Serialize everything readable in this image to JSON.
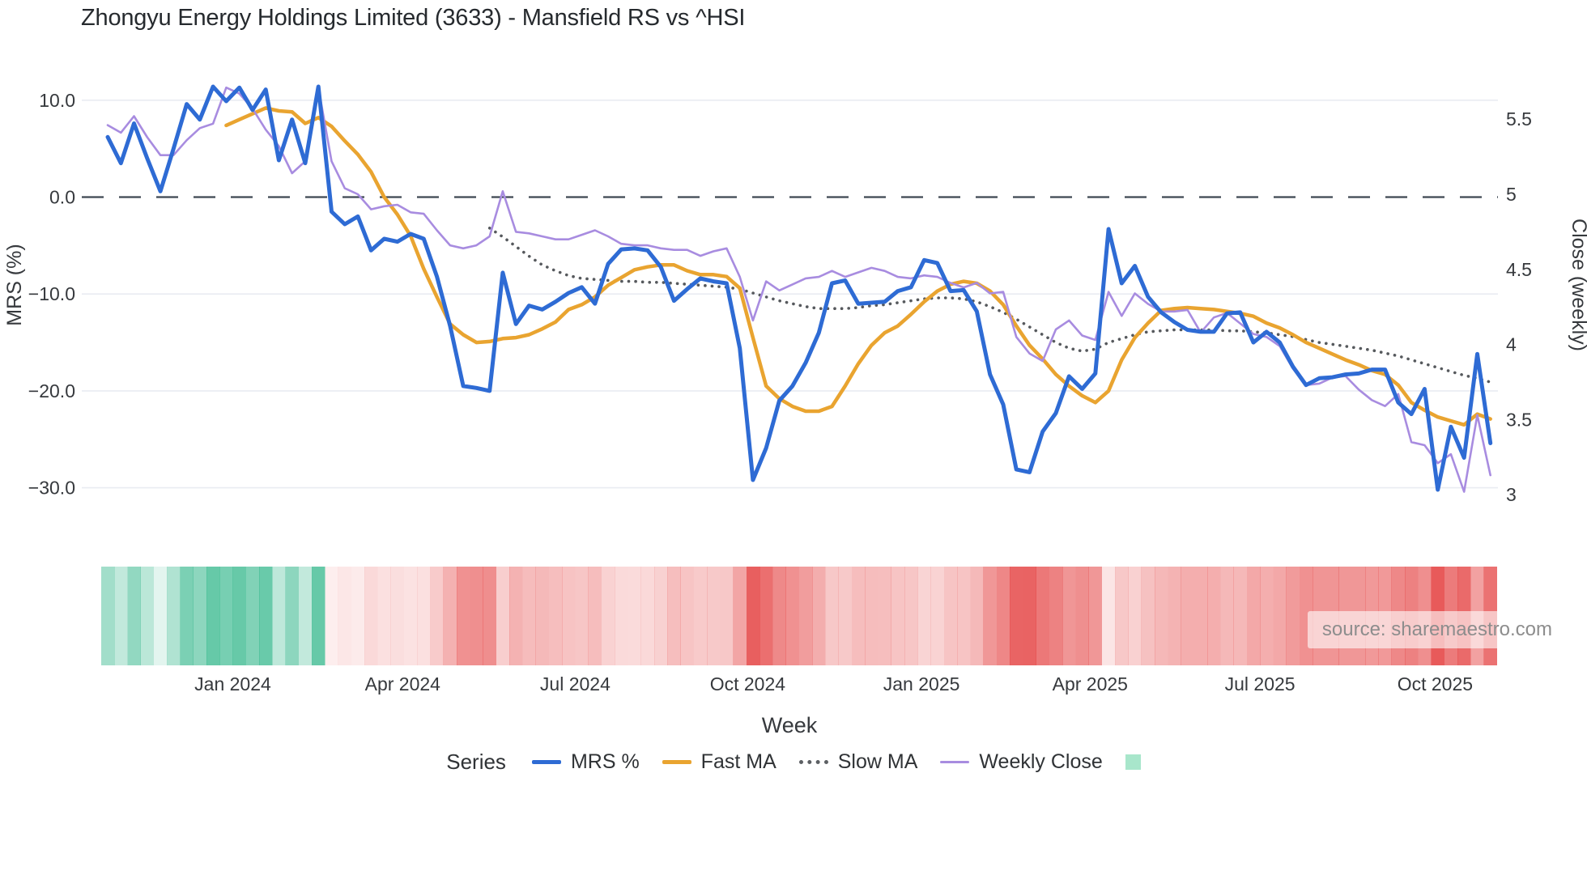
{
  "title": "Zhongyu Energy Holdings Limited (3633) - Mansfield RS vs ^HSI",
  "watermark": {
    "text": "source: sharemaestro.com"
  },
  "legend": {
    "title": "Series",
    "items": [
      {
        "label": "MRS %",
        "marker": "solid",
        "color": "#2e6bd4"
      },
      {
        "label": "Fast MA",
        "marker": "solid",
        "color": "#e9a430"
      },
      {
        "label": "Slow MA",
        "marker": "dotted",
        "color": "#5d6064"
      },
      {
        "label": "Weekly Close",
        "marker": "thin",
        "color": "#a88ce0"
      },
      {
        "label": "",
        "marker": "square",
        "color": "#a8e6cb"
      }
    ]
  },
  "chart_data": {
    "type": "line",
    "title": "Zhongyu Energy Holdings Limited (3633) - Mansfield RS vs ^HSI",
    "x_axis": {
      "label": "Week",
      "unit": "weekly points, index 0 = first week shown (late Oct 2023)",
      "ticks": [
        {
          "label": "Jan 2024",
          "week": 9.5
        },
        {
          "label": "Apr 2024",
          "week": 22.4
        },
        {
          "label": "Jul 2024",
          "week": 35.5
        },
        {
          "label": "Oct 2024",
          "week": 48.6
        },
        {
          "label": "Jan 2025",
          "week": 61.8
        },
        {
          "label": "Apr 2025",
          "week": 74.6
        },
        {
          "label": "Jul 2025",
          "week": 87.5
        },
        {
          "label": "Oct 2025",
          "week": 100.8
        }
      ]
    },
    "y_left": {
      "label": "MRS (%)",
      "range": [
        -33,
        13.5
      ],
      "zero_line": 0,
      "ticks": [
        {
          "v": 10,
          "label": "10.0"
        },
        {
          "v": 0,
          "label": "0.0"
        },
        {
          "v": -10,
          "label": "−10.0"
        },
        {
          "v": -20,
          "label": "−20.0"
        },
        {
          "v": -30,
          "label": "−30.0"
        }
      ]
    },
    "y_right": {
      "label": "Close (weekly)",
      "range": [
        2.95,
        5.75
      ],
      "ticks": [
        {
          "v": 5.5,
          "label": "5.5"
        },
        {
          "v": 5,
          "label": "5"
        },
        {
          "v": 4.5,
          "label": "4.5"
        },
        {
          "v": 4,
          "label": "4"
        },
        {
          "v": 3.5,
          "label": "3.5"
        },
        {
          "v": 3,
          "label": "3"
        }
      ]
    },
    "grid": true,
    "legend_position": "bottom",
    "series": [
      {
        "name": "MRS %",
        "axis": "left",
        "color": "#2e6bd4",
        "style": "solid",
        "width": 5,
        "values": [
          6.2,
          3.5,
          7.6,
          4.0,
          0.6,
          5.0,
          9.6,
          8.0,
          11.4,
          9.9,
          11.3,
          9.0,
          11.1,
          3.8,
          8.0,
          3.5,
          11.4,
          -1.5,
          -2.8,
          -2.0,
          -5.5,
          -4.3,
          -4.6,
          -3.8,
          -4.3,
          -8.2,
          -13.3,
          -19.5,
          -19.7,
          -20.0,
          -7.8,
          -13.1,
          -11.2,
          -11.6,
          -10.8,
          -9.9,
          -9.3,
          -11.0,
          -6.9,
          -5.4,
          -5.3,
          -5.5,
          -7.2,
          -10.7,
          -9.5,
          -8.4,
          -8.7,
          -8.9,
          -15.6,
          -29.2,
          -25.9,
          -21.0,
          -19.5,
          -17.1,
          -14.0,
          -8.9,
          -8.6,
          -11.0,
          -10.9,
          -10.8,
          -9.7,
          -9.3,
          -6.5,
          -6.8,
          -9.7,
          -9.6,
          -11.8,
          -18.3,
          -21.4,
          -28.1,
          -28.4,
          -24.2,
          -22.3,
          -18.5,
          -19.8,
          -18.2,
          -3.3,
          -8.9,
          -7.1,
          -10.3,
          -11.9,
          -12.9,
          -13.7,
          -13.9,
          -13.9,
          -12.0,
          -11.9,
          -15.0,
          -13.9,
          -15.0,
          -17.5,
          -19.4,
          -18.7,
          -18.6,
          -18.3,
          -18.2,
          -17.8,
          -17.8,
          -21.2,
          -22.4,
          -19.8,
          -30.2,
          -23.7,
          -26.9,
          -16.2,
          -25.4
        ]
      },
      {
        "name": "Fast MA",
        "axis": "left",
        "color": "#e9a430",
        "style": "solid",
        "width": 4.5,
        "values": [
          null,
          null,
          null,
          null,
          null,
          null,
          null,
          null,
          null,
          7.4,
          8.0,
          8.6,
          9.2,
          8.9,
          8.8,
          7.6,
          8.2,
          7.3,
          5.8,
          4.4,
          2.6,
          0.0,
          -1.8,
          -4.0,
          -7.4,
          -10.3,
          -13.1,
          -14.2,
          -15.0,
          -14.9,
          -14.6,
          -14.5,
          -14.2,
          -13.6,
          -12.9,
          -11.6,
          -11.1,
          -10.3,
          -9.1,
          -8.3,
          -7.5,
          -7.2,
          -7.0,
          -7.0,
          -7.6,
          -8.0,
          -8.0,
          -8.2,
          -9.4,
          -14.5,
          -19.5,
          -20.8,
          -21.6,
          -22.1,
          -22.1,
          -21.6,
          -19.5,
          -17.2,
          -15.3,
          -14.0,
          -13.3,
          -12.1,
          -10.8,
          -9.7,
          -9.0,
          -8.7,
          -8.9,
          -9.7,
          -11.1,
          -13.3,
          -15.3,
          -16.7,
          -18.3,
          -19.5,
          -20.5,
          -21.2,
          -20.0,
          -16.8,
          -14.5,
          -13.0,
          -11.7,
          -11.5,
          -11.4,
          -11.5,
          -11.6,
          -11.8,
          -12.0,
          -12.3,
          -13.0,
          -13.5,
          -14.2,
          -15.0,
          -15.6,
          -16.2,
          -16.8,
          -17.3,
          -17.9,
          -18.3,
          -19.4,
          -21.2,
          -22.0,
          -22.7,
          -23.1,
          -23.5,
          -22.4,
          -22.9
        ]
      },
      {
        "name": "Slow MA",
        "axis": "left",
        "color": "#56595d",
        "style": "dotted",
        "width": 3.6,
        "values": [
          null,
          null,
          null,
          null,
          null,
          null,
          null,
          null,
          null,
          null,
          null,
          null,
          null,
          null,
          null,
          null,
          null,
          null,
          null,
          null,
          null,
          null,
          null,
          null,
          null,
          null,
          null,
          null,
          null,
          -3.2,
          -4.1,
          -5.1,
          -6.1,
          -7.0,
          -7.6,
          -8.1,
          -8.4,
          -8.5,
          -8.6,
          -8.7,
          -8.7,
          -8.8,
          -8.8,
          -8.9,
          -9.0,
          -9.1,
          -9.2,
          -9.3,
          -9.5,
          -9.9,
          -10.3,
          -10.7,
          -11.0,
          -11.3,
          -11.5,
          -11.5,
          -11.5,
          -11.4,
          -11.2,
          -11.1,
          -10.9,
          -10.7,
          -10.5,
          -10.4,
          -10.4,
          -10.5,
          -10.8,
          -11.3,
          -11.9,
          -12.6,
          -13.4,
          -14.2,
          -15.0,
          -15.6,
          -15.9,
          -15.7,
          -15.0,
          -14.6,
          -14.2,
          -13.9,
          -13.8,
          -13.7,
          -13.7,
          -13.7,
          -13.7,
          -13.8,
          -13.8,
          -13.9,
          -14.0,
          -14.2,
          -14.4,
          -14.7,
          -15.0,
          -15.2,
          -15.4,
          -15.6,
          -15.8,
          -16.1,
          -16.4,
          -16.8,
          -17.2,
          -17.6,
          -18.0,
          -18.4,
          -18.7,
          -19.1
        ]
      },
      {
        "name": "Weekly Close",
        "axis": "right",
        "color": "#a88ce0",
        "style": "solid",
        "width": 2.6,
        "values": [
          5.46,
          5.41,
          5.52,
          5.38,
          5.26,
          5.26,
          5.36,
          5.44,
          5.47,
          5.71,
          5.67,
          5.57,
          5.43,
          5.32,
          5.14,
          5.22,
          5.71,
          5.22,
          5.04,
          5.0,
          4.9,
          4.92,
          4.93,
          4.88,
          4.87,
          4.76,
          4.66,
          4.64,
          4.66,
          4.72,
          5.02,
          4.75,
          4.74,
          4.72,
          4.7,
          4.7,
          4.73,
          4.76,
          4.72,
          4.67,
          4.66,
          4.66,
          4.64,
          4.63,
          4.63,
          4.59,
          4.62,
          4.64,
          4.45,
          4.16,
          4.42,
          4.36,
          4.4,
          4.44,
          4.45,
          4.49,
          4.45,
          4.48,
          4.51,
          4.49,
          4.45,
          4.44,
          4.46,
          4.45,
          4.41,
          4.38,
          4.41,
          4.34,
          4.35,
          4.05,
          3.94,
          3.89,
          4.1,
          4.16,
          4.06,
          4.03,
          4.35,
          4.19,
          4.34,
          4.27,
          4.22,
          4.22,
          4.23,
          4.08,
          4.18,
          4.21,
          4.14,
          4.07,
          4.05,
          3.99,
          3.84,
          3.73,
          3.74,
          3.78,
          3.79,
          3.7,
          3.63,
          3.59,
          3.67,
          3.35,
          3.33,
          3.21,
          3.27,
          3.02,
          3.53,
          3.13
        ]
      }
    ],
    "heatmap_strip": {
      "description": "one cell per week under the plot; green when MRS % is positive, red when negative, intensity scales with magnitude",
      "positive_color": "#2cb487",
      "negative_color": "#e54646",
      "source_series": "MRS %"
    },
    "zero_line_color": "#3d4752",
    "grid_color": "#e9ecf2"
  }
}
